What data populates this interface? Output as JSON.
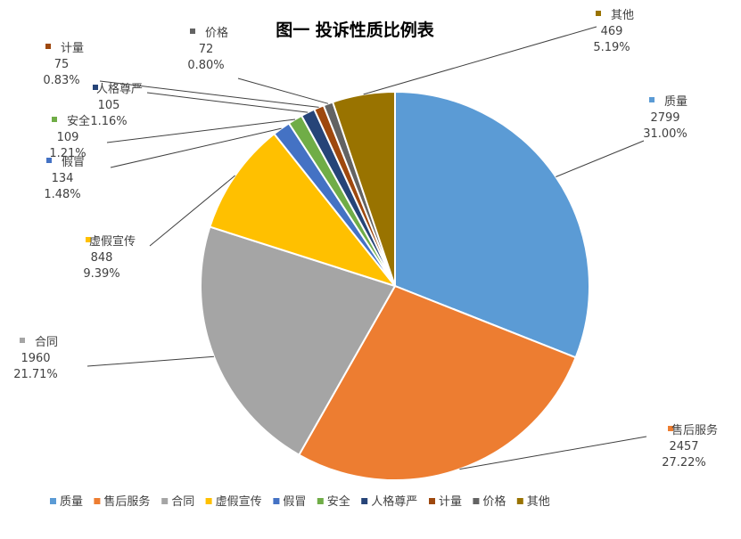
{
  "chart_data": {
    "type": "pie",
    "title": "图一 投诉性质比例表",
    "legend_position": "bottom",
    "series": [
      {
        "name": "质量",
        "value": 2799,
        "percent": "31.00%",
        "color": "#5B9BD5"
      },
      {
        "name": "售后服务",
        "value": 2457,
        "percent": "27.22%",
        "color": "#ED7D31"
      },
      {
        "name": "合同",
        "value": 1960,
        "percent": "21.71%",
        "color": "#A5A5A5"
      },
      {
        "name": "虚假宣传",
        "value": 848,
        "percent": "9.39%",
        "color": "#FFC000"
      },
      {
        "name": "假冒",
        "value": 134,
        "percent": "1.48%",
        "color": "#4472C4"
      },
      {
        "name": "安全",
        "value": 109,
        "percent": "1.21%",
        "color": "#70AD47"
      },
      {
        "name": "人格尊严",
        "value": 105,
        "percent": "1.16%",
        "color": "#264478"
      },
      {
        "name": "计量",
        "value": 75,
        "percent": "0.83%",
        "color": "#9E480E"
      },
      {
        "name": "价格",
        "value": 72,
        "percent": "0.80%",
        "color": "#636363"
      },
      {
        "name": "其他",
        "value": 469,
        "percent": "5.19%",
        "color": "#997300"
      }
    ]
  }
}
